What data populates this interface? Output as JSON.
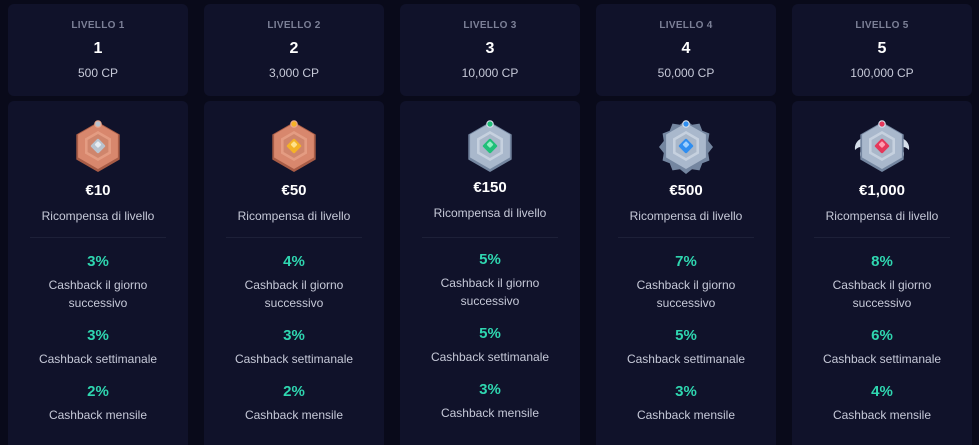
{
  "levels": [
    {
      "label": "LIVELLO 1",
      "number": "1",
      "points": "500 CP",
      "badge": {
        "icon": "bronze-hexagon-badge-icon",
        "body": "#d8876d",
        "body_light": "#eba88e",
        "body_dark": "#a85c46",
        "gem": "#b9c3cf",
        "gem_light": "#e8edf3"
      },
      "reward_amount": "€10",
      "reward_label": "Ricompensa di livello",
      "cashback": [
        {
          "value": "3%",
          "label": "Cashback il giorno successivo"
        },
        {
          "value": "3%",
          "label": "Cashback settimanale"
        },
        {
          "value": "2%",
          "label": "Cashback mensile"
        }
      ]
    },
    {
      "label": "LIVELLO 2",
      "number": "2",
      "points": "3,000 CP",
      "badge": {
        "icon": "bronze-hexagon-badge-icon",
        "body": "#d8876d",
        "body_light": "#eba88e",
        "body_dark": "#a85c46",
        "gem": "#f4b227",
        "gem_light": "#ffe28a"
      },
      "reward_amount": "€50",
      "reward_label": "Ricompensa di livello",
      "cashback": [
        {
          "value": "4%",
          "label": "Cashback il giorno successivo"
        },
        {
          "value": "3%",
          "label": "Cashback settimanale"
        },
        {
          "value": "2%",
          "label": "Cashback mensile"
        }
      ]
    },
    {
      "label": "LIVELLO 3",
      "number": "3",
      "points": "10,000 CP",
      "badge": {
        "icon": "silver-hexagon-badge-icon",
        "body": "#a9b8cc",
        "body_light": "#d5deea",
        "body_dark": "#7486a0",
        "gem": "#1fbf78",
        "gem_light": "#8ff0c2"
      },
      "reward_amount": "€150",
      "reward_label": "Ricompensa di livello",
      "cashback": [
        {
          "value": "5%",
          "label": "Cashback il giorno successivo"
        },
        {
          "value": "5%",
          "label": "Cashback settimanale"
        },
        {
          "value": "3%",
          "label": "Cashback mensile"
        }
      ]
    },
    {
      "label": "LIVELLO 4",
      "number": "4",
      "points": "50,000 CP",
      "badge": {
        "icon": "silver-gear-badge-icon",
        "body": "#a9b8cc",
        "body_light": "#d5deea",
        "body_dark": "#7486a0",
        "gem": "#2f8ef0",
        "gem_light": "#9dd0ff"
      },
      "reward_amount": "€500",
      "reward_label": "Ricompensa di livello",
      "cashback": [
        {
          "value": "7%",
          "label": "Cashback il giorno successivo"
        },
        {
          "value": "5%",
          "label": "Cashback settimanale"
        },
        {
          "value": "3%",
          "label": "Cashback mensile"
        }
      ]
    },
    {
      "label": "LIVELLO 5",
      "number": "5",
      "points": "100,000 CP",
      "badge": {
        "icon": "silver-winged-badge-icon",
        "body": "#a9b8cc",
        "body_light": "#d5deea",
        "body_dark": "#7486a0",
        "gem": "#e5375a",
        "gem_light": "#ff9db0"
      },
      "reward_amount": "€1,000",
      "reward_label": "Ricompensa di livello",
      "cashback": [
        {
          "value": "8%",
          "label": "Cashback il giorno successivo"
        },
        {
          "value": "6%",
          "label": "Cashback settimanale"
        },
        {
          "value": "4%",
          "label": "Cashback mensile"
        }
      ]
    }
  ]
}
